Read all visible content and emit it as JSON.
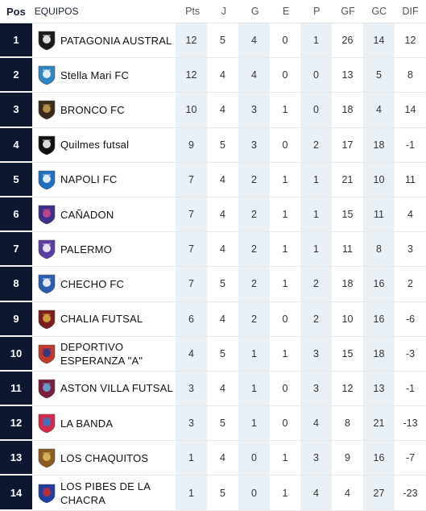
{
  "headers": {
    "pos": "Pos",
    "equipos": "EQUIPOS",
    "pts": "Pts",
    "j": "J",
    "g": "G",
    "e": "E",
    "p": "P",
    "gf": "GF",
    "gc": "GC",
    "dif": "DIF"
  },
  "rows": [
    {
      "pos": "1",
      "team": "PATAGONIA AUSTRAL",
      "pts": "12",
      "j": "5",
      "g": "4",
      "e": "0",
      "p": "1",
      "gf": "26",
      "gc": "14",
      "dif": "12",
      "logo": "patagonia-crest-icon",
      "color": "#1b1b1b",
      "accent": "#ffffff"
    },
    {
      "pos": "2",
      "team": "Stella Mari FC",
      "pts": "12",
      "j": "4",
      "g": "4",
      "e": "0",
      "p": "0",
      "gf": "13",
      "gc": "5",
      "dif": "8",
      "logo": "stella-mari-crest-icon",
      "color": "#2e86c1",
      "accent": "#ffffff"
    },
    {
      "pos": "3",
      "team": "BRONCO FC",
      "pts": "10",
      "j": "4",
      "g": "3",
      "e": "1",
      "p": "0",
      "gf": "18",
      "gc": "4",
      "dif": "14",
      "logo": "bronco-crest-icon",
      "color": "#3a2a1a",
      "accent": "#c8a050"
    },
    {
      "pos": "4",
      "team": "Quilmes futsal",
      "pts": "9",
      "j": "5",
      "g": "3",
      "e": "0",
      "p": "2",
      "gf": "17",
      "gc": "18",
      "dif": "-1",
      "logo": "quilmes-crest-icon",
      "color": "#111111",
      "accent": "#ffffff"
    },
    {
      "pos": "5",
      "team": "NAPOLI FC",
      "pts": "7",
      "j": "4",
      "g": "2",
      "e": "1",
      "p": "1",
      "gf": "21",
      "gc": "10",
      "dif": "11",
      "logo": "napoli-crest-icon",
      "color": "#1f6fc0",
      "accent": "#ffffff"
    },
    {
      "pos": "6",
      "team": "CAÑADON",
      "pts": "7",
      "j": "4",
      "g": "2",
      "e": "1",
      "p": "1",
      "gf": "15",
      "gc": "11",
      "dif": "4",
      "logo": "canadon-crest-icon",
      "color": "#3b2f8a",
      "accent": "#d14a8a"
    },
    {
      "pos": "7",
      "team": "PALERMO",
      "pts": "7",
      "j": "4",
      "g": "2",
      "e": "1",
      "p": "1",
      "gf": "11",
      "gc": "8",
      "dif": "3",
      "logo": "palermo-crest-icon",
      "color": "#5b3fa0",
      "accent": "#ffffff"
    },
    {
      "pos": "8",
      "team": "CHECHO FC",
      "pts": "7",
      "j": "5",
      "g": "2",
      "e": "1",
      "p": "2",
      "gf": "18",
      "gc": "16",
      "dif": "2",
      "logo": "checho-crest-icon",
      "color": "#2a5db0",
      "accent": "#ffffff"
    },
    {
      "pos": "9",
      "team": "CHALIA FUTSAL",
      "pts": "6",
      "j": "4",
      "g": "2",
      "e": "0",
      "p": "2",
      "gf": "10",
      "gc": "16",
      "dif": "-6",
      "logo": "chalia-crest-icon",
      "color": "#7a1e1e",
      "accent": "#e0b040"
    },
    {
      "pos": "10",
      "team": "DEPORTIVO ESPERANZA  \"A\"",
      "pts": "4",
      "j": "5",
      "g": "1",
      "e": "1",
      "p": "3",
      "gf": "15",
      "gc": "18",
      "dif": "-3",
      "logo": "esperanza-crest-icon",
      "color": "#c0392b",
      "accent": "#1f3a8a"
    },
    {
      "pos": "11",
      "team": "ASTON VILLA FUTSAL",
      "pts": "3",
      "j": "4",
      "g": "1",
      "e": "0",
      "p": "3",
      "gf": "12",
      "gc": "13",
      "dif": "-1",
      "logo": "aston-villa-crest-icon",
      "color": "#7a1f3d",
      "accent": "#6ab0e0"
    },
    {
      "pos": "12",
      "team": "LA BANDA",
      "pts": "3",
      "j": "5",
      "g": "1",
      "e": "0",
      "p": "4",
      "gf": "8",
      "gc": "21",
      "dif": "-13",
      "logo": "la-banda-crest-icon",
      "color": "#d12a4a",
      "accent": "#2a7fd1"
    },
    {
      "pos": "13",
      "team": "LOS CHAQUITOS",
      "pts": "1",
      "j": "4",
      "g": "0",
      "e": "1",
      "p": "3",
      "gf": "9",
      "gc": "16",
      "dif": "-7",
      "logo": "chaquitos-crest-icon",
      "color": "#8a5a20",
      "accent": "#e0c060"
    },
    {
      "pos": "14",
      "team": "LOS PIBES DE LA CHACRA",
      "pts": "1",
      "j": "5",
      "g": "0",
      "e": "1",
      "p": "4",
      "gf": "4",
      "gc": "27",
      "dif": "-23",
      "logo": "pibes-chacra-crest-icon",
      "color": "#1f3fa0",
      "accent": "#d12a2a"
    }
  ]
}
